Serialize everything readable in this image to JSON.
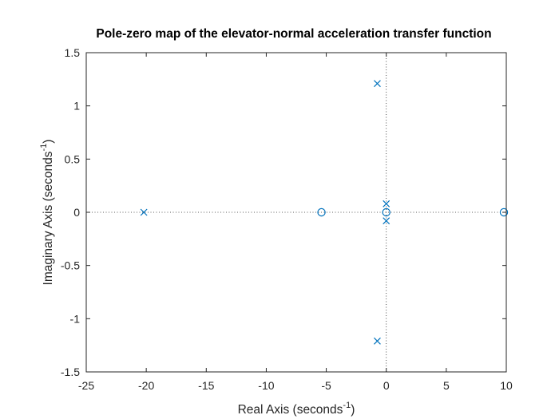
{
  "chart_data": {
    "type": "scatter",
    "title": "Pole-zero map of the elevator-normal acceleration transfer function",
    "xlabel": {
      "text": "Real Axis (seconds",
      "sup": "-1",
      "close": ")"
    },
    "ylabel": {
      "text": "Imaginary Axis (seconds",
      "sup": "-1",
      "close": ")"
    },
    "xlim": [
      -25,
      10
    ],
    "ylim": [
      -1.5,
      1.5
    ],
    "xticks": [
      -25,
      -20,
      -15,
      -10,
      -5,
      0,
      5,
      10
    ],
    "yticks": [
      -1.5,
      -1,
      -0.5,
      0,
      0.5,
      1,
      1.5
    ],
    "xtick_labels": [
      "-25",
      "-20",
      "-15",
      "-10",
      "-5",
      "0",
      "5",
      "10"
    ],
    "ytick_labels": [
      "-1.5",
      "-1",
      "-0.5",
      "0",
      "0.5",
      "1",
      "1.5"
    ],
    "grid": false,
    "reference_lines": {
      "x": 0,
      "y": 0,
      "style": "dotted"
    },
    "marker_color": "#0072BD",
    "series": [
      {
        "marker": "x",
        "points": [
          {
            "x": -20.2,
            "y": 0
          },
          {
            "x": -0.75,
            "y": 1.21
          },
          {
            "x": -0.75,
            "y": -1.21
          },
          {
            "x": 0.0,
            "y": 0.08
          },
          {
            "x": 0.0,
            "y": -0.08
          }
        ]
      },
      {
        "marker": "o",
        "points": [
          {
            "x": -5.4,
            "y": 0
          },
          {
            "x": 0.0,
            "y": 0
          },
          {
            "x": 9.8,
            "y": 0
          }
        ]
      }
    ]
  }
}
